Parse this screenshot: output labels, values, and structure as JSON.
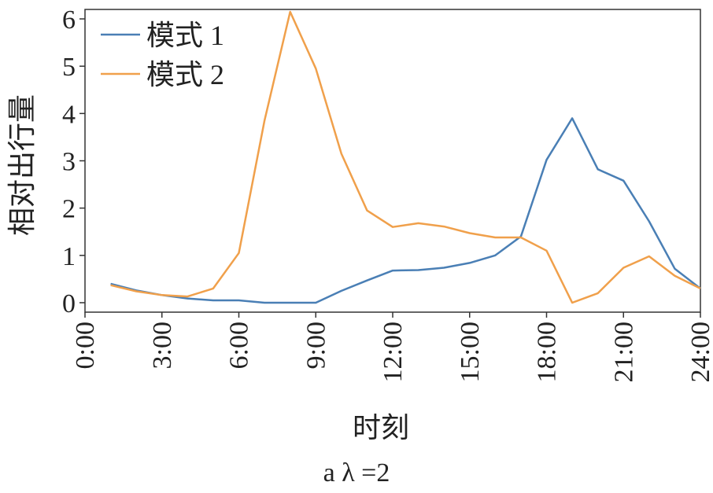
{
  "chart_data": {
    "type": "line",
    "title": "",
    "xlabel": "时刻",
    "ylabel": "相对出行量",
    "caption": "a  λ =2",
    "xlim": [
      0,
      24
    ],
    "ylim": [
      -0.2,
      6.2
    ],
    "grid": false,
    "legend_position": "top-left",
    "x_tick_values": [
      0,
      3,
      6,
      9,
      12,
      15,
      18,
      21,
      24
    ],
    "x_tick_labels": [
      "0:00",
      "3:00",
      "6:00",
      "9:00",
      "12:00",
      "15:00",
      "18:00",
      "21:00",
      "24:00"
    ],
    "y_tick_values": [
      0,
      1,
      2,
      3,
      4,
      5,
      6
    ],
    "y_tick_labels": [
      "0",
      "1",
      "2",
      "3",
      "4",
      "5",
      "6"
    ],
    "x": [
      1,
      2,
      3,
      4,
      5,
      6,
      7,
      8,
      9,
      10,
      11,
      12,
      13,
      14,
      15,
      16,
      17,
      18,
      19,
      20,
      21,
      22,
      23,
      24
    ],
    "series": [
      {
        "name": "模式 1",
        "color": "#4a7fb5",
        "values": [
          0.4,
          0.26,
          0.16,
          0.09,
          0.05,
          0.05,
          0.0,
          0.0,
          0.0,
          0.25,
          0.47,
          0.68,
          0.69,
          0.74,
          0.84,
          1.0,
          1.4,
          3.02,
          3.9,
          2.82,
          2.58,
          1.72,
          0.72,
          0.3
        ]
      },
      {
        "name": "模式 2",
        "color": "#f0a04b",
        "values": [
          0.37,
          0.24,
          0.16,
          0.13,
          0.3,
          1.05,
          3.85,
          6.15,
          4.95,
          3.15,
          1.95,
          1.6,
          1.68,
          1.61,
          1.47,
          1.38,
          1.38,
          1.1,
          0.0,
          0.2,
          0.74,
          0.98,
          0.57,
          0.3
        ]
      }
    ]
  }
}
